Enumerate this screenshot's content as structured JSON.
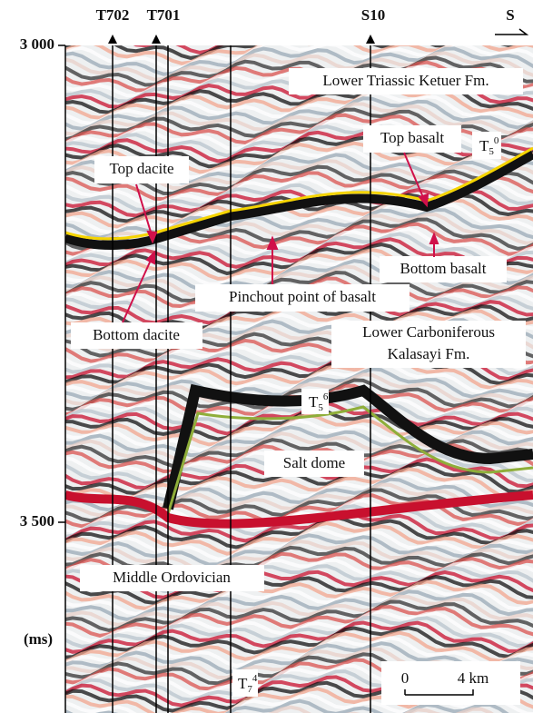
{
  "axis": {
    "ticks": [
      {
        "value": 3000,
        "label": "3 000"
      },
      {
        "value": 3500,
        "label": "3 500"
      }
    ],
    "unit": "(ms)"
  },
  "wells": [
    "T702",
    "T701",
    "S10"
  ],
  "direction": "S",
  "annotations": {
    "ketuer": "Lower Triassic Ketuer Fm.",
    "top_basalt": "Top basalt",
    "top_dacite": "Top dacite",
    "bottom_basalt": "Bottom basalt",
    "pinchout": "Pinchout point of basalt",
    "bottom_dacite": "Bottom dacite",
    "carboniferous": [
      "Lower Carboniferous",
      "Kalasayi Fm."
    ],
    "salt_dome": "Salt dome",
    "ordovician": "Middle Ordovician"
  },
  "horizons": [
    {
      "base": "T",
      "sub": "5",
      "sup": "0"
    },
    {
      "base": "T",
      "sub": "5",
      "sup": "6"
    },
    {
      "base": "T",
      "sub": "7",
      "sup": "4"
    }
  ],
  "scale": {
    "start": "0",
    "end": "4 km"
  }
}
